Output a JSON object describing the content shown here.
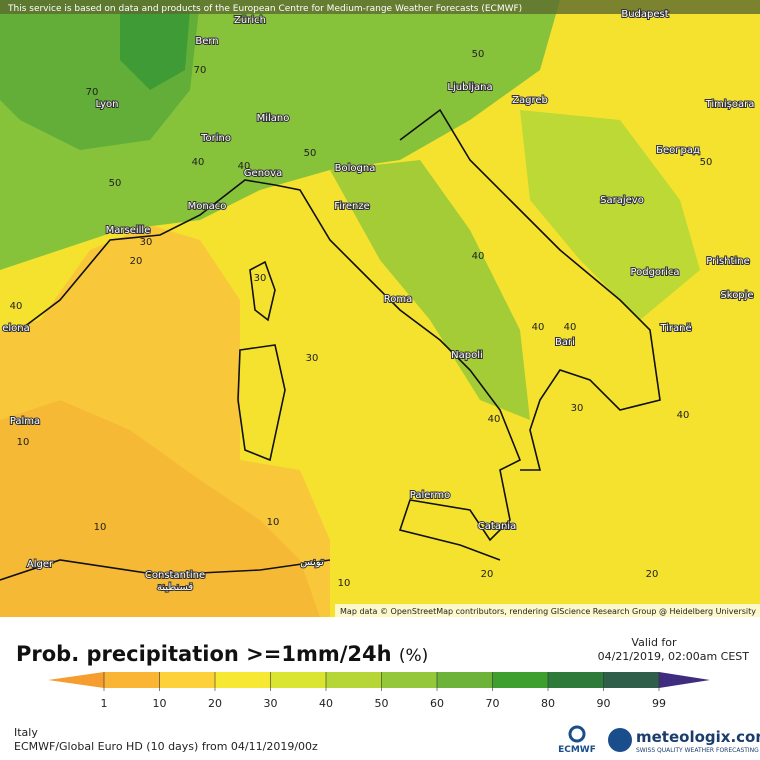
{
  "attribution_top": "This service is based on data and products of the European Centre for Medium-range Weather Forecasts (ECMWF)",
  "map_credit": "Map data © OpenStreetMap contributors, rendering GIScience Research Group @ Heidelberg University",
  "cities": [
    "Budapest",
    "Bern",
    "Zürich",
    "Lyon",
    "Ljubljana",
    "Zagreb",
    "Timișoara",
    "Milano",
    "Torino",
    "Београд",
    "Genova",
    "Bologna",
    "Monaco",
    "Firenze",
    "Sarajevo",
    "Marseille",
    "Prishtine",
    "Podgorica",
    "Skopje",
    "Roma",
    "Tiranë",
    "elona",
    "Bari",
    "Napoli",
    "Palma",
    "Palermo",
    "Catania",
    "Alger",
    "Constantine",
    "قسنطينة",
    "تونس"
  ],
  "contour_labels": [
    "50",
    "70",
    "70",
    "40",
    "40",
    "50",
    "50",
    "50",
    "30",
    "20",
    "30",
    "40",
    "40",
    "30",
    "40",
    "40",
    "30",
    "40",
    "40",
    "10",
    "10",
    "10",
    "20",
    "20",
    "10"
  ],
  "title": "Prob. precipitation >=1mm/24h",
  "unit": "(%)",
  "valid_label": "Valid for",
  "valid_time": "04/21/2019, 02:00am CEST",
  "colorbar": {
    "ticks": [
      1,
      10,
      20,
      30,
      40,
      50,
      60,
      70,
      80,
      90,
      99
    ],
    "colors": [
      "#f59e2f",
      "#fbb534",
      "#fcd13a",
      "#f7e833",
      "#dae531",
      "#b5d636",
      "#94c83a",
      "#6db33a",
      "#3e9f2f",
      "#2d7a3b",
      "#2f5e4a",
      "#3f2c7e"
    ]
  },
  "region": "Italy",
  "model_line": "ECMWF/Global Euro HD (10 days) from 04/11/2019/00z",
  "ecmwf_logo": "ECMWF",
  "brand": "meteologix.com",
  "brand_tagline": "SWISS QUALITY WEATHER FORECASTING"
}
